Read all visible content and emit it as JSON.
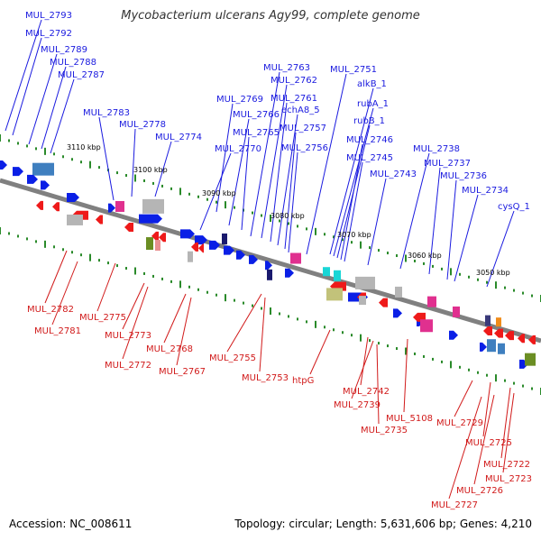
{
  "title": "Mycobacterium ulcerans Agy99, complete genome",
  "footer": {
    "accession": "Accession: NC_008611",
    "summary": "Topology: circular; Length: 5,631,606 bp; Genes: 4,210"
  },
  "colors": {
    "forward_label": "#1a1adf",
    "reverse_label": "#d11a1a",
    "backbone": "#808080",
    "tick": "#2a8a2a"
  },
  "kbp_labels": [
    "3110 kbp",
    "3100 kbp",
    "3090 kbp",
    "3080 kbp",
    "3070 kbp",
    "3060 kbp",
    "3050 kbp"
  ],
  "forward_genes": [
    "MUL_2793",
    "MUL_2792",
    "MUL_2789",
    "MUL_2788",
    "MUL_2787",
    "MUL_2783",
    "MUL_2778",
    "MUL_2774",
    "MUL_2770",
    "MUL_2769",
    "MUL_2766",
    "MUL_2765",
    "MUL_2763",
    "MUL_2762",
    "MUL_2761",
    "echA8_5",
    "MUL_2757",
    "MUL_2756",
    "MUL_2751",
    "alkB_1",
    "rubA_1",
    "rubB_1",
    "MUL_2746",
    "MUL_2745",
    "MUL_2743",
    "MUL_2738",
    "MUL_2737",
    "MUL_2736",
    "MUL_2734",
    "cysQ_1"
  ],
  "reverse_genes": [
    "MUL_2782",
    "MUL_2781",
    "MUL_2775",
    "MUL_2773",
    "MUL_2772",
    "MUL_2768",
    "MUL_2767",
    "MUL_2755",
    "MUL_2753",
    "htpG",
    "MUL_2742",
    "MUL_2739",
    "MUL_5108",
    "MUL_2735",
    "MUL_2729",
    "MUL_2725",
    "MUL_2722",
    "MUL_2723",
    "MUL_2726",
    "MUL_2727"
  ]
}
